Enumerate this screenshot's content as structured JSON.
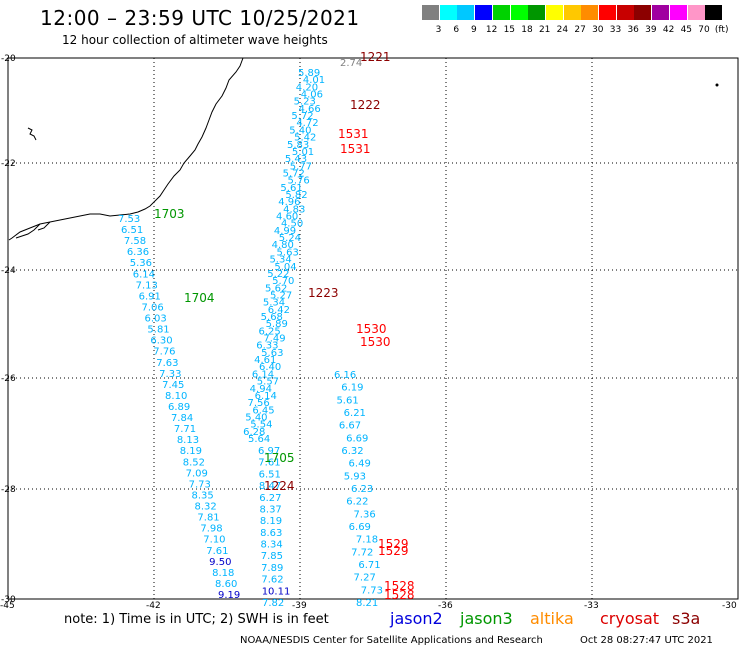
{
  "title": "12:00 – 23:59 UTC 10/25/2021",
  "subtitle": "12 hour collection of altimeter wave heights",
  "legend": {
    "unit": "(ft)",
    "colors": [
      "#808080",
      "#00ffff",
      "#00c8ff",
      "#0000ff",
      "#00d200",
      "#00ff00",
      "#009600",
      "#ffff00",
      "#ffc800",
      "#ff8c00",
      "#ff0000",
      "#c80000",
      "#8c0000",
      "#a000a0",
      "#ff00ff",
      "#ff96c8",
      "#000000"
    ],
    "labels": [
      "3",
      "6",
      "9",
      "12",
      "15",
      "18",
      "21",
      "24",
      "27",
      "30",
      "33",
      "36",
      "39",
      "42",
      "45",
      "70",
      "(ft)"
    ]
  },
  "axes": {
    "lat_labels": [
      "-20",
      "-22",
      "-24",
      "-26",
      "-28",
      "-30"
    ],
    "lon_labels": [
      "-45",
      "-42",
      "-39",
      "-36",
      "-33",
      "-30"
    ]
  },
  "tracks": [
    {
      "values": [
        "7.53",
        "6.51",
        "7.58",
        "6.36",
        "5.36",
        "6.14",
        "7.13",
        "6.91",
        "7.06",
        "6.03",
        "5.81",
        "6.30",
        "7.76",
        "7.63",
        "7.33",
        "7.45",
        "8.10",
        "6.89",
        "7.84",
        "7.71",
        "8.13",
        "8.19",
        "8.52",
        "7.09",
        "7.73",
        "8.35",
        "8.32",
        "7.81",
        "7.98",
        "7.10",
        "7.61",
        "9.50",
        "8.18",
        "8.60",
        "9.19"
      ]
    },
    {
      "values": [
        "6.97",
        "7.61",
        "6.51",
        "8.47",
        "6.27",
        "8.37",
        "8.19",
        "8.63",
        "8.34",
        "7.85",
        "7.89",
        "7.62",
        "10.11",
        "7.82"
      ]
    },
    {
      "values": [
        "5.89",
        "4.01",
        "4.20",
        "4.06",
        "5.23",
        "4.66",
        "5.72",
        "4.72",
        "5.40",
        "5.42",
        "5.83",
        "5.01",
        "5.43",
        "5.77",
        "5.72",
        "5.76",
        "5.61",
        "5.82",
        "4.96",
        "4.83",
        "4.60",
        "4.50",
        "4.99",
        "5.24",
        "4.80",
        "5.63",
        "5.34",
        "5.04",
        "5.22",
        "5.70",
        "5.62",
        "5.27",
        "5.34",
        "6.42",
        "5.68",
        "5.89",
        "6.25",
        "7.49",
        "6.33",
        "5.63",
        "4.61",
        "6.40",
        "6.14",
        "5.57",
        "4.94",
        "6.14",
        "7.56",
        "6.45",
        "5.40",
        "5.54",
        "6.28",
        "5.64"
      ]
    },
    {
      "values": [
        "6.16",
        "6.19",
        "5.61",
        "6.21",
        "6.67",
        "6.69",
        "6.32",
        "6.49",
        "5.93",
        "6.23",
        "6.22",
        "7.36",
        "6.69",
        "7.18",
        "7.72",
        "6.71",
        "7.27",
        "7.73",
        "8.21"
      ]
    },
    {
      "values": [
        "2.74"
      ]
    }
  ],
  "time_labels": [
    {
      "text": "1221",
      "color": "#8c0000"
    },
    {
      "text": "1222",
      "color": "#8c0000"
    },
    {
      "text": "1531",
      "color": "#ff0000"
    },
    {
      "text": "1531",
      "color": "#ff0000"
    },
    {
      "text": "1703",
      "color": "#009600"
    },
    {
      "text": "1704",
      "color": "#009600"
    },
    {
      "text": "1223",
      "color": "#8c0000"
    },
    {
      "text": "1530",
      "color": "#ff0000"
    },
    {
      "text": "1530",
      "color": "#ff0000"
    },
    {
      "text": "1705",
      "color": "#009600"
    },
    {
      "text": "1224",
      "color": "#8c0000"
    },
    {
      "text": "1529",
      "color": "#ff0000"
    },
    {
      "text": "1529",
      "color": "#ff0000"
    },
    {
      "text": "1528",
      "color": "#ff0000"
    },
    {
      "text": "1528",
      "color": "#ff0000"
    }
  ],
  "note": "note: 1) Time is in UTC; 2) SWH is in feet",
  "satellites": [
    {
      "name": "jason2",
      "color": "#0000dc"
    },
    {
      "name": "jason3",
      "color": "#009600"
    },
    {
      "name": "altika",
      "color": "#ff8c00"
    },
    {
      "name": "cryosat",
      "color": "#dc0000"
    },
    {
      "name": "s3a",
      "color": "#8c0000"
    }
  ],
  "footer_left": "NOAA/NESDIS Center for Satellite Applications and Research",
  "footer_right": "Oct 28 08:27:47 UTC 2021"
}
